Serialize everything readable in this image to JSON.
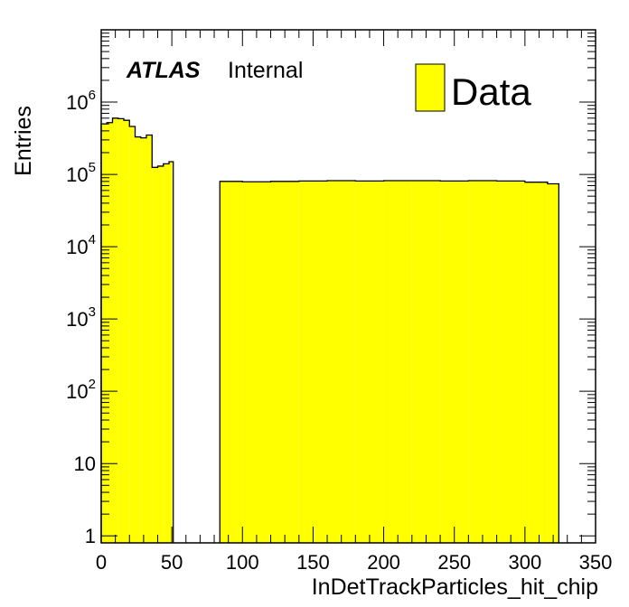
{
  "chart_data": {
    "type": "bar",
    "histogram": true,
    "xlabel": "InDetTrackParticles_hit_chip",
    "ylabel": "Entries",
    "xlim": [
      0,
      350
    ],
    "ylim": [
      0.8,
      10000000
    ],
    "log_y": true,
    "grid": false,
    "fill_color": "#ffff00",
    "line_color": "#000000",
    "x_ticks": [
      "0",
      "50",
      "100",
      "150",
      "200",
      "250",
      "300",
      "350"
    ],
    "y_ticks": [
      {
        "value": 1,
        "base": "1",
        "exp": ""
      },
      {
        "value": 10,
        "base": "10",
        "exp": ""
      },
      {
        "value": 100,
        "base": "10",
        "exp": "2"
      },
      {
        "value": 1000,
        "base": "10",
        "exp": "3"
      },
      {
        "value": 10000,
        "base": "10",
        "exp": "4"
      },
      {
        "value": 100000,
        "base": "10",
        "exp": "5"
      },
      {
        "value": 1000000,
        "base": "10",
        "exp": "6"
      }
    ],
    "bins": [
      {
        "x0": 0,
        "x1": 4,
        "value": 500000
      },
      {
        "x0": 4,
        "x1": 8,
        "value": 520000
      },
      {
        "x0": 8,
        "x1": 12,
        "value": 600000
      },
      {
        "x0": 12,
        "x1": 16,
        "value": 590000
      },
      {
        "x0": 16,
        "x1": 20,
        "value": 560000
      },
      {
        "x0": 20,
        "x1": 24,
        "value": 460000
      },
      {
        "x0": 24,
        "x1": 28,
        "value": 330000
      },
      {
        "x0": 28,
        "x1": 32,
        "value": 320000
      },
      {
        "x0": 32,
        "x1": 36,
        "value": 350000
      },
      {
        "x0": 36,
        "x1": 40,
        "value": 125000
      },
      {
        "x0": 40,
        "x1": 44,
        "value": 130000
      },
      {
        "x0": 44,
        "x1": 48,
        "value": 140000
      },
      {
        "x0": 48,
        "x1": 51,
        "value": 150000
      },
      {
        "x0": 84,
        "x1": 100,
        "value": 80000
      },
      {
        "x0": 100,
        "x1": 120,
        "value": 79000
      },
      {
        "x0": 120,
        "x1": 140,
        "value": 80000
      },
      {
        "x0": 140,
        "x1": 160,
        "value": 81000
      },
      {
        "x0": 160,
        "x1": 180,
        "value": 82000
      },
      {
        "x0": 180,
        "x1": 200,
        "value": 81000
      },
      {
        "x0": 200,
        "x1": 220,
        "value": 82000
      },
      {
        "x0": 220,
        "x1": 240,
        "value": 82000
      },
      {
        "x0": 240,
        "x1": 260,
        "value": 81000
      },
      {
        "x0": 260,
        "x1": 280,
        "value": 82000
      },
      {
        "x0": 280,
        "x1": 300,
        "value": 81000
      },
      {
        "x0": 300,
        "x1": 316,
        "value": 78000
      },
      {
        "x0": 316,
        "x1": 324,
        "value": 74000
      }
    ]
  },
  "annotation": {
    "atlas_label": "ATLAS",
    "status_label": "Internal"
  },
  "legend": {
    "entries": [
      {
        "label": "Data",
        "color": "#ffff00"
      }
    ]
  }
}
